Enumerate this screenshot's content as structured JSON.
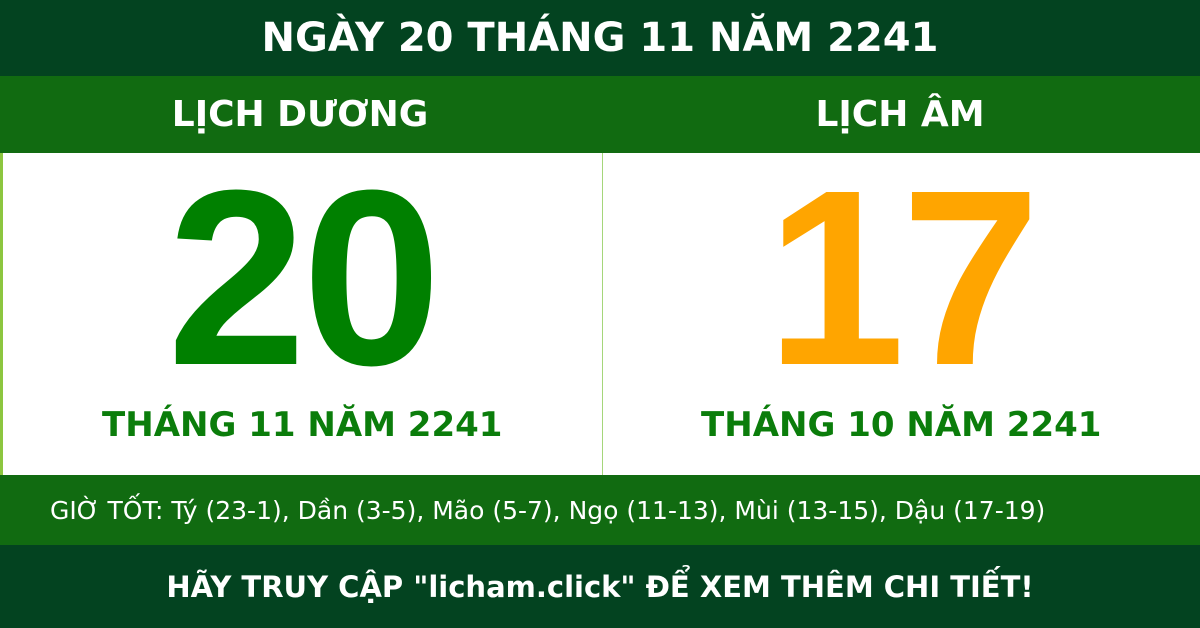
{
  "title": "NGÀY 20 THÁNG 11 NĂM 2241",
  "solar": {
    "label": "LỊCH DƯƠNG",
    "day": "20",
    "month_year": "THÁNG 11 NĂM 2241",
    "color": "#008000"
  },
  "lunar": {
    "label": "LỊCH ÂM",
    "day": "17",
    "month_year": "THÁNG 10 NĂM 2241",
    "color": "#ffa500"
  },
  "good_hours": "GIỜ TỐT: Tý (23-1), Dần (3-5), Mão (5-7), Ngọ (11-13), Mùi (13-15), Dậu (17-19)",
  "footer": "HÃY TRUY CẬP \"licham.click\" ĐỂ XEM THÊM CHI TIẾT!",
  "colors": {
    "dark_green": "#034320",
    "green": "#116b11"
  }
}
